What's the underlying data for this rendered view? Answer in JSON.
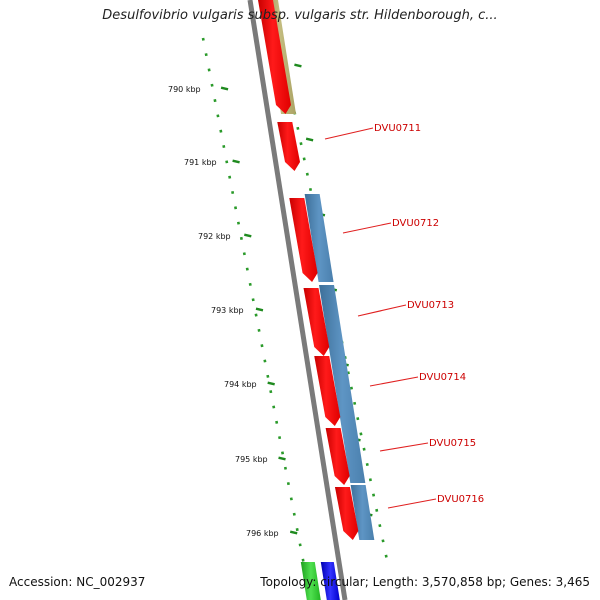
{
  "header": {
    "title": "Desulfovibrio vulgaris subsp. vulgaris str. Hildenborough, c..."
  },
  "footer": {
    "accession_label": "Accession:",
    "accession_value": "NC_002937",
    "topology_label": "Topology:",
    "topology_value": "circular;",
    "length_label": "Length:",
    "length_value": "3,570,858 bp;",
    "genes_label": "Genes:",
    "genes_value": "3,465"
  },
  "ruler": {
    "unit": "kbp",
    "ticks": [
      "790 kbp",
      "791 kbp",
      "792 kbp",
      "793 kbp",
      "794 kbp",
      "795 kbp",
      "796 kbp"
    ]
  },
  "genes": [
    {
      "name": "DVU0711",
      "strand": "+"
    },
    {
      "name": "DVU0712",
      "strand": "+"
    },
    {
      "name": "DVU0713",
      "strand": "+"
    },
    {
      "name": "DVU0714",
      "strand": "+"
    },
    {
      "name": "DVU0715",
      "strand": "+"
    },
    {
      "name": "DVU0716",
      "strand": "+"
    }
  ],
  "colors": {
    "cds_feature": "#ff0000",
    "gene_band_blue": "#4f85b5",
    "gene_band_olive": "#b4ac6a",
    "backbone": "#7a7a7a",
    "ruler_tick": "#1f8a1f",
    "label_text": "#cc0000",
    "leader_line": "#e02020",
    "bottom_green": "#2ecc2e",
    "bottom_blue": "#1010ee"
  }
}
